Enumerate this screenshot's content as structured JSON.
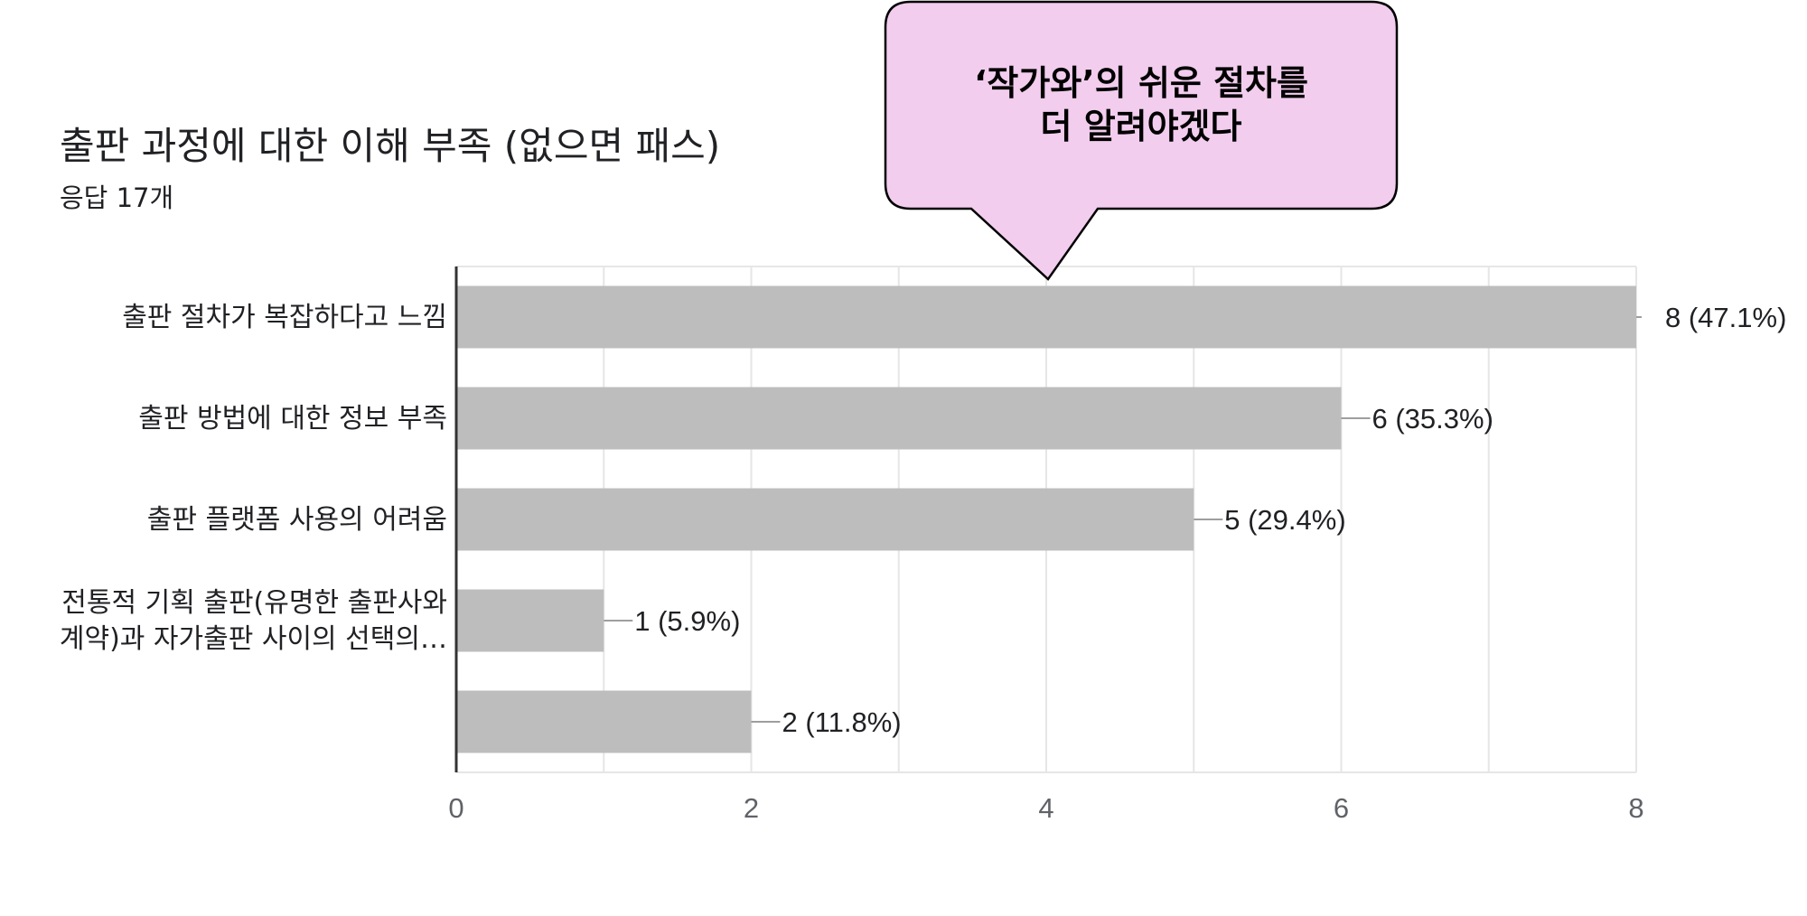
{
  "header": {
    "title": "출판 과정에 대한 이해 부족 (없으면 패스)",
    "subtitle": "응답 17개"
  },
  "callout": {
    "line1": "‘작가와’의 쉬운 절차를",
    "line2": "더 알려야겠다",
    "fill_color": "#f2cdee",
    "border_color": "#000000"
  },
  "colors": {
    "bar": "#bdbdbd",
    "axis": "#333333",
    "grid": "#e6e6e6"
  },
  "chart_data": {
    "type": "bar",
    "orientation": "horizontal",
    "title": "출판 과정에 대한 이해 부족 (없으면 패스)",
    "subtitle": "응답 17개",
    "categories": [
      [
        "출판 절차가 복잡하다고 느낌"
      ],
      [
        "출판 방법에 대한 정보 부족"
      ],
      [
        "출판 플랫폼 사용의 어려움"
      ],
      [
        "전통적 기획 출판(유명한 출판사와",
        "계약)과 자가출판 사이의 선택의…"
      ],
      [
        ""
      ]
    ],
    "values": [
      8,
      6,
      5,
      1,
      2
    ],
    "value_labels": [
      "8 (47.1%)",
      "6 (35.3%)",
      "5 (29.4%)",
      "1 (5.9%)",
      "2 (11.8%)"
    ],
    "xlim": [
      0,
      8
    ],
    "x_ticks": [
      "0",
      "2",
      "4",
      "6",
      "8"
    ],
    "grid": true,
    "xlabel": "",
    "ylabel": ""
  }
}
